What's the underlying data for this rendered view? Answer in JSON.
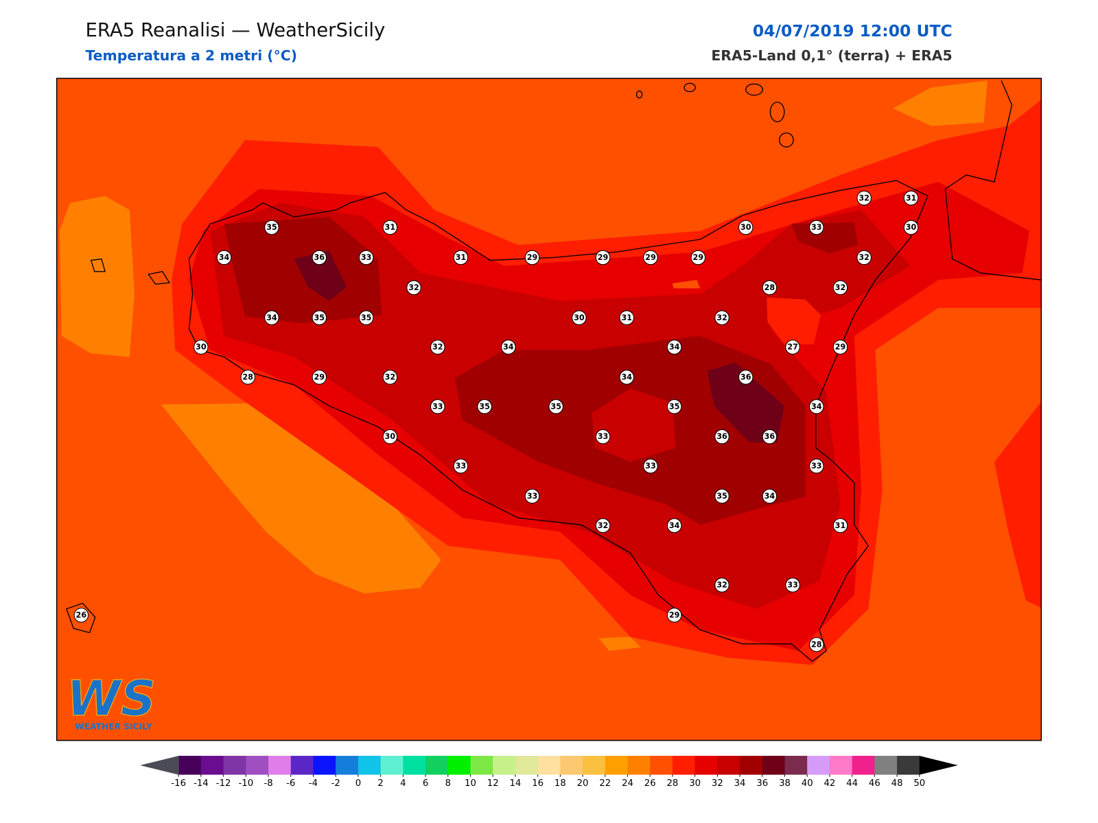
{
  "header": {
    "title": "ERA5 Reanalisi — WeatherSicily",
    "subtitle": "Temperatura a 2 metri (°C)",
    "date": "04/07/2019 12:00 UTC",
    "source": "ERA5-Land 0,1° (terra) + ERA5"
  },
  "stations": [
    35,
    31,
    34,
    36,
    33,
    31,
    29,
    29,
    29,
    29,
    30,
    33,
    32,
    31,
    30,
    32,
    32,
    28,
    32,
    34,
    35,
    35,
    30,
    31,
    32,
    30,
    32,
    34,
    34,
    27,
    29,
    28,
    29,
    32,
    34,
    36,
    33,
    35,
    35,
    35,
    34,
    30,
    33,
    36,
    36,
    33,
    33,
    33,
    33,
    35,
    34,
    32,
    34,
    31,
    32,
    33,
    29,
    28,
    26
  ],
  "colorbar": {
    "ticks": [
      -16,
      -14,
      -12,
      -10,
      -8,
      -6,
      -4,
      -2,
      0,
      2,
      4,
      6,
      8,
      10,
      12,
      14,
      16,
      18,
      20,
      22,
      24,
      26,
      28,
      30,
      32,
      34,
      36,
      38,
      40,
      42,
      44,
      46,
      48,
      50
    ],
    "colors": [
      "#470059",
      "#6a0d8f",
      "#7f35a6",
      "#9f4fbf",
      "#e07de8",
      "#5b26c8",
      "#0a14ff",
      "#137fdb",
      "#10c3e8",
      "#5ef0d0",
      "#00e0a0",
      "#11d060",
      "#00f000",
      "#7de845",
      "#c6f08a",
      "#e0e89a",
      "#ffe0a0",
      "#fcc870",
      "#fcc040",
      "#ffa000",
      "#ff8000",
      "#ff5000",
      "#ff1e00",
      "#e60000",
      "#c80000",
      "#a00000",
      "#6e0018",
      "#7a2b4e",
      "#d59cf7",
      "#ff7ac8",
      "#f0208c",
      "#808080",
      "#3a3a3a"
    ],
    "under_color": "#4b4b55",
    "over_color": "#000000"
  },
  "logo": {
    "mark": "WS",
    "text": "WEATHER SICILY"
  }
}
